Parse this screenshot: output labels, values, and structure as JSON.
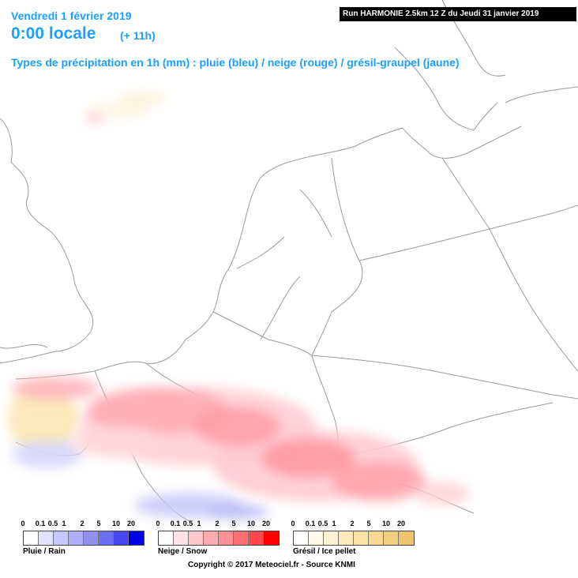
{
  "header": {
    "date": "Vendredi 1 février 2019",
    "time": "0:00 locale",
    "offset": "(+ 11h)",
    "subtitle": "Types de précipitation en 1h (mm) : pluie (bleu) / neige (rouge) / grésil-graupel (jaune)",
    "run": "Run HARMONIE 2.5km 12 Z du Jeudi 31 janvier 2019"
  },
  "legends": [
    {
      "label": "Pluie / Rain",
      "ticks": [
        "0",
        "0.1",
        "0.5",
        "1",
        "2",
        "5",
        "10",
        "20"
      ],
      "colors": [
        "#ffffff",
        "#e2e2ff",
        "#c8c8ff",
        "#aeaefa",
        "#9090f0",
        "#6e6ef0",
        "#4646f0",
        "#0000e6"
      ]
    },
    {
      "label": "Neige / Snow",
      "ticks": [
        "0",
        "0.1",
        "0.5",
        "1",
        "2",
        "5",
        "10",
        "20"
      ],
      "colors": [
        "#ffffff",
        "#ffe2e6",
        "#ffc8cc",
        "#ffaab0",
        "#ff9096",
        "#ff6e72",
        "#ff484c",
        "#ff0000"
      ]
    },
    {
      "label": "Grésil / Ice pellet",
      "ticks": [
        "0",
        "0.1",
        "0.5",
        "1",
        "2",
        "5",
        "10",
        "20"
      ],
      "colors": [
        "#ffffff",
        "#fffaea",
        "#fff2d2",
        "#ffeabc",
        "#fde2a6",
        "#f8d892",
        "#f2ce80",
        "#eec46e"
      ]
    }
  ],
  "copyright": "Copyright © 2017 Meteociel.fr - Source KNMI"
}
